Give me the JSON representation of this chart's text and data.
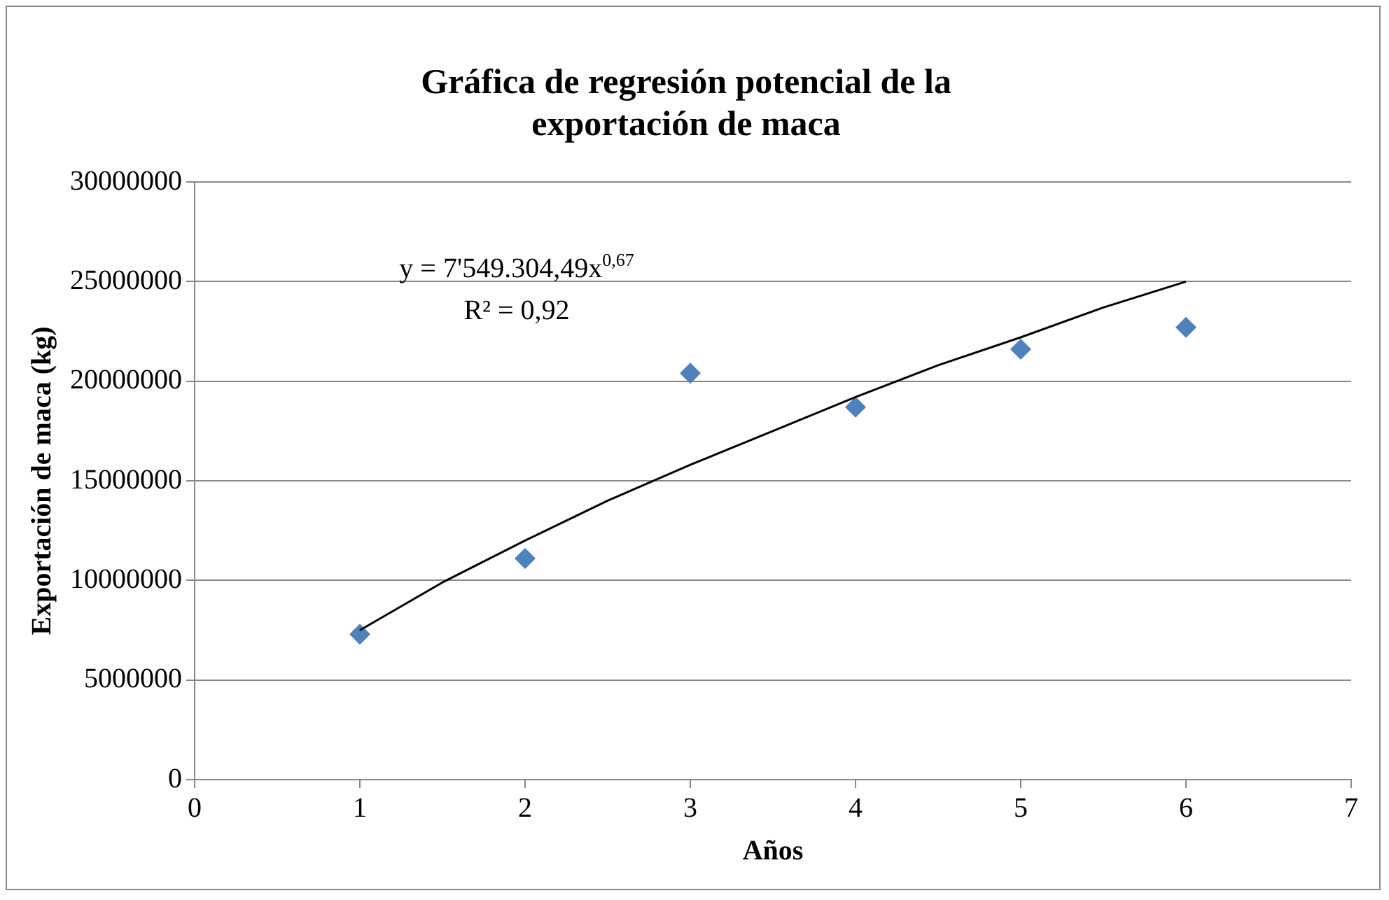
{
  "chart_data": {
    "type": "scatter",
    "title": "Gráfica de regresión potencial de la exportación de maca",
    "xlabel": "Años",
    "ylabel": "Exportación de maca (kg)",
    "xlim": [
      0,
      7
    ],
    "xticks": [
      0,
      1,
      2,
      3,
      4,
      5,
      6,
      7
    ],
    "ylim": [
      0,
      30000000
    ],
    "yticks": [
      0,
      5000000,
      10000000,
      15000000,
      20000000,
      25000000,
      30000000
    ],
    "grid": "y",
    "legend": false,
    "marker": "diamond",
    "series": [
      {
        "color": "#4f81bd",
        "x": [
          1,
          2,
          3,
          4,
          5,
          6
        ],
        "values": [
          7300000,
          11100000,
          20400000,
          18700000,
          21600000,
          22700000
        ]
      },
      {
        "type": "line",
        "color": "#000000",
        "marker": "none",
        "x": [
          1,
          1.5,
          2,
          2.5,
          3,
          3.5,
          4,
          4.5,
          5,
          5.5,
          6
        ],
        "values": [
          7500000,
          9900000,
          12000000,
          14000000,
          15800000,
          17500000,
          19200000,
          20800000,
          22200000,
          23700000,
          25000000
        ]
      }
    ],
    "annotations": [
      "y = 7'549.304,49x$^{0,67}$",
      "R² = 0,92"
    ]
  }
}
